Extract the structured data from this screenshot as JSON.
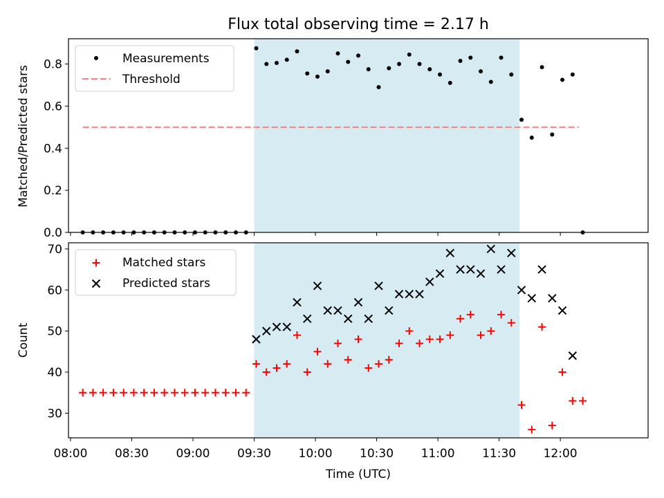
{
  "figure": {
    "title": "Flux total observing time = 2.17 h",
    "xlabel": "Time (UTC)"
  },
  "colors": {
    "shade": "#add8e6",
    "threshold": "#ff7f7f",
    "matched": "#ff0000",
    "predicted": "#000000",
    "measurement": "#000000"
  },
  "chart_data": [
    {
      "type": "scatter",
      "ylabel": "Matched/Predicted stars",
      "xlim": [
        "07:59",
        "12:43"
      ],
      "ylim": [
        0,
        0.92
      ],
      "yticks": [
        "0.0",
        "0.2",
        "0.4",
        "0.6",
        "0.8"
      ],
      "shaded_interval": [
        "09:30",
        "11:40"
      ],
      "legend_position": "upper-left",
      "threshold": {
        "name": "Threshold",
        "value": 0.5,
        "x_range": [
          "08:06",
          "12:09"
        ]
      },
      "series": [
        {
          "name": "Measurements",
          "x": [
            "08:06",
            "08:11",
            "08:16",
            "08:21",
            "08:26",
            "08:31",
            "08:36",
            "08:41",
            "08:46",
            "08:51",
            "08:56",
            "09:01",
            "09:06",
            "09:11",
            "09:16",
            "09:21",
            "09:26",
            "09:31",
            "09:36",
            "09:41",
            "09:46",
            "09:51",
            "09:56",
            "10:01",
            "10:06",
            "10:11",
            "10:16",
            "10:21",
            "10:26",
            "10:31",
            "10:36",
            "10:41",
            "10:46",
            "10:51",
            "10:56",
            "11:01",
            "11:06",
            "11:11",
            "11:16",
            "11:21",
            "11:26",
            "11:31",
            "11:36",
            "11:41",
            "11:46",
            "11:51",
            "11:56",
            "12:01",
            "12:06",
            "12:11"
          ],
          "y": [
            0,
            0,
            0,
            0,
            0,
            0,
            0,
            0,
            0,
            0,
            0,
            0,
            0,
            0,
            0,
            0,
            0,
            0.875,
            0.8,
            0.805,
            0.82,
            0.86,
            0.755,
            0.74,
            0.765,
            0.85,
            0.81,
            0.84,
            0.775,
            0.69,
            0.78,
            0.8,
            0.845,
            0.8,
            0.775,
            0.75,
            0.71,
            0.815,
            0.83,
            0.765,
            0.715,
            0.83,
            0.75,
            0.535,
            0.45,
            0.785,
            0.465,
            0.725,
            0.75,
            0
          ]
        }
      ]
    },
    {
      "type": "scatter",
      "ylabel": "Count",
      "xlim": [
        "07:59",
        "12:43"
      ],
      "ylim": [
        24,
        71.5
      ],
      "yticks": [
        "30",
        "40",
        "50",
        "60",
        "70"
      ],
      "xticks": [
        "08:00",
        "08:30",
        "09:00",
        "09:30",
        "10:00",
        "10:30",
        "11:00",
        "11:30",
        "12:00"
      ],
      "shaded_interval": [
        "09:30",
        "11:40"
      ],
      "legend_position": "upper-left",
      "series": [
        {
          "name": "Matched stars",
          "x": [
            "08:06",
            "08:11",
            "08:16",
            "08:21",
            "08:26",
            "08:31",
            "08:36",
            "08:41",
            "08:46",
            "08:51",
            "08:56",
            "09:01",
            "09:06",
            "09:11",
            "09:16",
            "09:21",
            "09:26",
            "09:31",
            "09:36",
            "09:41",
            "09:46",
            "09:51",
            "09:56",
            "10:01",
            "10:06",
            "10:11",
            "10:16",
            "10:21",
            "10:26",
            "10:31",
            "10:36",
            "10:41",
            "10:46",
            "10:51",
            "10:56",
            "11:01",
            "11:06",
            "11:11",
            "11:16",
            "11:21",
            "11:26",
            "11:31",
            "11:36",
            "11:41",
            "11:46",
            "11:51",
            "11:56",
            "12:01",
            "12:06",
            "12:11"
          ],
          "y": [
            35,
            35,
            35,
            35,
            35,
            35,
            35,
            35,
            35,
            35,
            35,
            35,
            35,
            35,
            35,
            35,
            35,
            42,
            40,
            41,
            42,
            49,
            40,
            45,
            42,
            47,
            43,
            48,
            41,
            42,
            43,
            47,
            50,
            47,
            48,
            48,
            49,
            53,
            54,
            49,
            50,
            54,
            52,
            32,
            26,
            51,
            27,
            40,
            33,
            33
          ]
        },
        {
          "name": "Predicted stars",
          "x": [
            "09:31",
            "09:36",
            "09:41",
            "09:46",
            "09:51",
            "09:56",
            "10:01",
            "10:06",
            "10:11",
            "10:16",
            "10:21",
            "10:26",
            "10:31",
            "10:36",
            "10:41",
            "10:46",
            "10:51",
            "10:56",
            "11:01",
            "11:06",
            "11:11",
            "11:16",
            "11:21",
            "11:26",
            "11:31",
            "11:36",
            "11:41",
            "11:46",
            "11:51",
            "11:56",
            "12:01",
            "12:06"
          ],
          "y": [
            48,
            50,
            51,
            51,
            57,
            53,
            61,
            55,
            55,
            53,
            57,
            53,
            61,
            55,
            59,
            59,
            59,
            62,
            64,
            69,
            65,
            65,
            64,
            70,
            65,
            69,
            60,
            58,
            65,
            58,
            55,
            44
          ]
        }
      ]
    }
  ]
}
